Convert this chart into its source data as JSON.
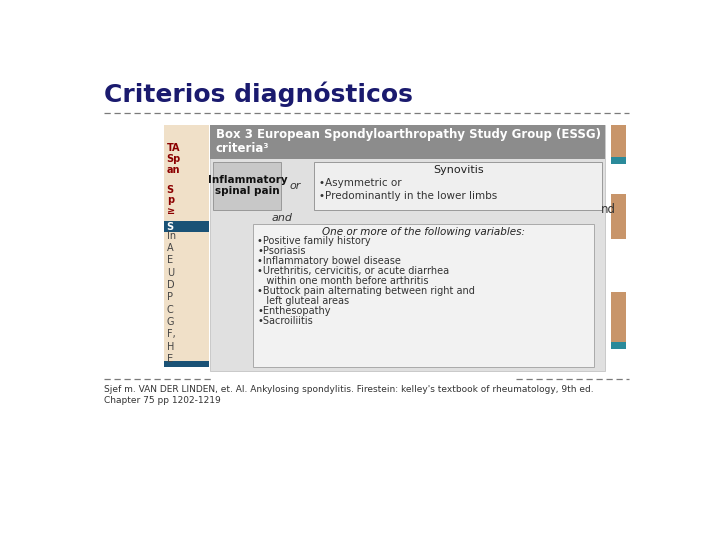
{
  "title": "Criterios diagnósticos",
  "title_color": "#1a1a6e",
  "bg_color": "#ffffff",
  "box_header_text1": "Box 3 European Spondyloarthropathy Study Group (ESSG)",
  "box_header_text2": "criteria³",
  "box_header_bg": "#8c8c8c",
  "box_header_text_color": "#ffffff",
  "box_bg": "#e0e0e0",
  "cell1_text": "Inflammatory\nspinal pain",
  "cell1_bg": "#c8c8c8",
  "or_text": "or",
  "cell2_header": "Synovitis",
  "cell2_line1": "•Asymmetric or",
  "cell2_line2": "•Predominantly in the lower limbs",
  "cell2_bg": "#efefef",
  "and_text": "and",
  "inner_box_header": "One or more of the following variables:",
  "inner_box_items": [
    "•Positive family history",
    "•Psoriasis",
    "•Inflammatory bowel disease",
    "•Urethritis, cervicitis, or acute diarrhea",
    "   within one month before arthritis",
    "•Buttock pain alternating between right and",
    "   left gluteal areas",
    "•Enthesopathy",
    "•Sacroiliitis"
  ],
  "inner_box_bg": "#f2f2f2",
  "inner_box_border": "#aaaaaa",
  "footer_text1": "Sjef m. VAN DER LINDEN, et. Al. Ankylosing spondylitis. Firestein: kelley's textbook of rheumatology, 9th ed.",
  "footer_text2": "Chapter 75 pp 1202-1219",
  "dashed_line_color": "#7a7a7a",
  "right_bar_color": "#c8956a",
  "right_bar2_color": "#2a8a9a",
  "left_col_bg": "#f0e0c8",
  "left_col_text_color": "#8b0000",
  "left_col_blue": "#1a5276",
  "left_texts_red": [
    "TA",
    "Sp",
    "an",
    "S",
    "p",
    "≥"
  ],
  "left_y_red": [
    108,
    122,
    136,
    162,
    176,
    190
  ],
  "left_texts_gray": [
    "In",
    "A",
    "E",
    "U",
    "D",
    "P",
    "C",
    "G",
    "F,",
    "H",
    "E"
  ],
  "left_y_gray": [
    222,
    238,
    254,
    270,
    286,
    302,
    318,
    334,
    350,
    366,
    382
  ],
  "nd_text": "nd"
}
